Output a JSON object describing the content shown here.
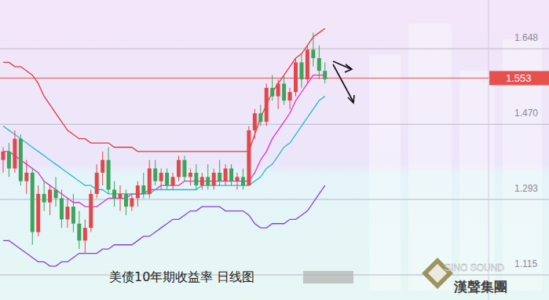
{
  "chart_data": {
    "type": "candlestick",
    "title": "美债10年期收益率 日线图",
    "annotations": [
      "SINO SOUND",
      "漢聲集團"
    ],
    "last_value": 1.553,
    "ylim": [
      1.03,
      1.737
    ],
    "yticks": [
      1.115,
      1.293,
      {
        "value": 1.47,
        "label": "1.470"
      },
      1.648
    ],
    "grid": true,
    "tick_labels": "y",
    "categories": [
      null,
      null,
      null,
      null,
      null,
      null,
      null,
      null,
      null,
      null,
      null,
      null,
      null,
      null,
      null,
      null,
      null,
      null,
      null,
      null,
      null,
      null,
      null,
      null,
      null,
      null,
      null,
      null,
      null,
      null,
      null,
      null,
      null,
      null,
      null,
      null,
      null,
      null,
      null,
      null,
      null,
      null,
      null,
      null,
      null,
      null,
      null,
      null,
      null,
      null,
      null,
      null,
      null,
      null,
      null,
      null
    ],
    "series": [
      {
        "type": "candlestick",
        "open": [
          1.36,
          1.38,
          1.34,
          1.41,
          1.31,
          1.33,
          1.19,
          1.28,
          1.26,
          1.29,
          1.27,
          1.22,
          1.25,
          1.21,
          1.17,
          1.2,
          1.28,
          1.33,
          1.36,
          1.29,
          1.27,
          1.28,
          1.25,
          1.27,
          1.3,
          1.28,
          1.34,
          1.31,
          1.33,
          1.3,
          1.32,
          1.36,
          1.32,
          1.33,
          1.3,
          1.32,
          1.3,
          1.33,
          1.31,
          1.34,
          1.31,
          1.32,
          1.3,
          1.43,
          1.47,
          1.45,
          1.53,
          1.51,
          1.54,
          1.5,
          1.52,
          1.59,
          1.55,
          1.62,
          1.6,
          1.57
        ],
        "high": [
          1.39,
          1.4,
          1.43,
          1.42,
          1.36,
          1.34,
          1.3,
          1.31,
          1.3,
          1.32,
          1.29,
          1.27,
          1.28,
          1.24,
          1.22,
          1.29,
          1.35,
          1.38,
          1.39,
          1.31,
          1.3,
          1.29,
          1.28,
          1.31,
          1.33,
          1.36,
          1.36,
          1.34,
          1.34,
          1.33,
          1.37,
          1.37,
          1.34,
          1.35,
          1.33,
          1.35,
          1.34,
          1.36,
          1.35,
          1.35,
          1.33,
          1.34,
          1.44,
          1.48,
          1.49,
          1.54,
          1.56,
          1.55,
          1.56,
          1.53,
          1.6,
          1.61,
          1.63,
          1.66,
          1.63,
          1.59
        ],
        "low": [
          1.33,
          1.32,
          1.33,
          1.3,
          1.28,
          1.16,
          1.18,
          1.24,
          1.23,
          1.25,
          1.2,
          1.2,
          1.19,
          1.15,
          1.14,
          1.19,
          1.27,
          1.3,
          1.28,
          1.25,
          1.24,
          1.23,
          1.24,
          1.25,
          1.27,
          1.27,
          1.3,
          1.29,
          1.29,
          1.29,
          1.31,
          1.31,
          1.3,
          1.29,
          1.29,
          1.29,
          1.29,
          1.3,
          1.3,
          1.3,
          1.29,
          1.29,
          1.3,
          1.41,
          1.44,
          1.44,
          1.5,
          1.48,
          1.49,
          1.48,
          1.51,
          1.53,
          1.54,
          1.58,
          1.55,
          1.54
        ],
        "close": [
          1.38,
          1.34,
          1.41,
          1.31,
          1.33,
          1.19,
          1.28,
          1.26,
          1.29,
          1.27,
          1.22,
          1.25,
          1.21,
          1.17,
          1.2,
          1.28,
          1.33,
          1.36,
          1.29,
          1.27,
          1.28,
          1.25,
          1.27,
          1.3,
          1.28,
          1.34,
          1.31,
          1.33,
          1.3,
          1.32,
          1.36,
          1.32,
          1.33,
          1.3,
          1.32,
          1.3,
          1.33,
          1.31,
          1.34,
          1.31,
          1.32,
          1.3,
          1.43,
          1.47,
          1.45,
          1.53,
          1.51,
          1.54,
          1.5,
          1.52,
          1.59,
          1.55,
          1.62,
          1.6,
          1.57,
          1.55
        ]
      },
      {
        "type": "line",
        "color": "#e0393e",
        "values": [
          1.59,
          1.59,
          1.58,
          1.58,
          1.57,
          1.56,
          1.54,
          1.51,
          1.49,
          1.47,
          1.45,
          1.43,
          1.42,
          1.41,
          1.41,
          1.4,
          1.4,
          1.4,
          1.4,
          1.39,
          1.39,
          1.39,
          1.39,
          1.38,
          1.38,
          1.38,
          1.38,
          1.38,
          1.38,
          1.38,
          1.38,
          1.38,
          1.38,
          1.38,
          1.38,
          1.38,
          1.38,
          1.38,
          1.38,
          1.38,
          1.38,
          1.38,
          1.38,
          1.42,
          1.46,
          1.49,
          1.52,
          1.54,
          1.56,
          1.58,
          1.6,
          1.61,
          1.63,
          1.65,
          1.66,
          1.67
        ]
      },
      {
        "type": "line",
        "color": "#e030c8",
        "values": [
          1.38,
          1.38,
          1.37,
          1.36,
          1.35,
          1.34,
          1.33,
          1.31,
          1.3,
          1.29,
          1.28,
          1.27,
          1.26,
          1.26,
          1.25,
          1.25,
          1.25,
          1.26,
          1.27,
          1.27,
          1.27,
          1.27,
          1.28,
          1.28,
          1.28,
          1.29,
          1.29,
          1.3,
          1.3,
          1.3,
          1.3,
          1.31,
          1.31,
          1.31,
          1.31,
          1.31,
          1.31,
          1.31,
          1.31,
          1.31,
          1.31,
          1.31,
          1.31,
          1.33,
          1.36,
          1.38,
          1.41,
          1.43,
          1.45,
          1.47,
          1.5,
          1.52,
          1.54,
          1.56,
          1.56,
          1.56
        ]
      },
      {
        "type": "line",
        "color": "#28b8d0",
        "values": [
          1.44,
          1.43,
          1.42,
          1.41,
          1.4,
          1.39,
          1.38,
          1.37,
          1.36,
          1.35,
          1.34,
          1.33,
          1.32,
          1.31,
          1.3,
          1.3,
          1.29,
          1.29,
          1.28,
          1.28,
          1.28,
          1.28,
          1.28,
          1.28,
          1.28,
          1.28,
          1.29,
          1.29,
          1.29,
          1.29,
          1.29,
          1.29,
          1.29,
          1.29,
          1.3,
          1.3,
          1.3,
          1.3,
          1.3,
          1.3,
          1.3,
          1.3,
          1.3,
          1.31,
          1.32,
          1.34,
          1.35,
          1.37,
          1.39,
          1.4,
          1.42,
          1.44,
          1.46,
          1.48,
          1.5,
          1.51
        ]
      },
      {
        "type": "line",
        "color": "#8a3fd6",
        "values": [
          1.17,
          1.17,
          1.16,
          1.15,
          1.14,
          1.13,
          1.12,
          1.12,
          1.11,
          1.11,
          1.12,
          1.12,
          1.13,
          1.14,
          1.14,
          1.14,
          1.14,
          1.15,
          1.15,
          1.16,
          1.16,
          1.16,
          1.16,
          1.17,
          1.18,
          1.18,
          1.19,
          1.2,
          1.21,
          1.22,
          1.22,
          1.23,
          1.24,
          1.24,
          1.25,
          1.25,
          1.25,
          1.25,
          1.24,
          1.24,
          1.24,
          1.24,
          1.23,
          1.21,
          1.2,
          1.2,
          1.21,
          1.21,
          1.21,
          1.22,
          1.22,
          1.23,
          1.24,
          1.26,
          1.28,
          1.3
        ]
      }
    ]
  }
}
